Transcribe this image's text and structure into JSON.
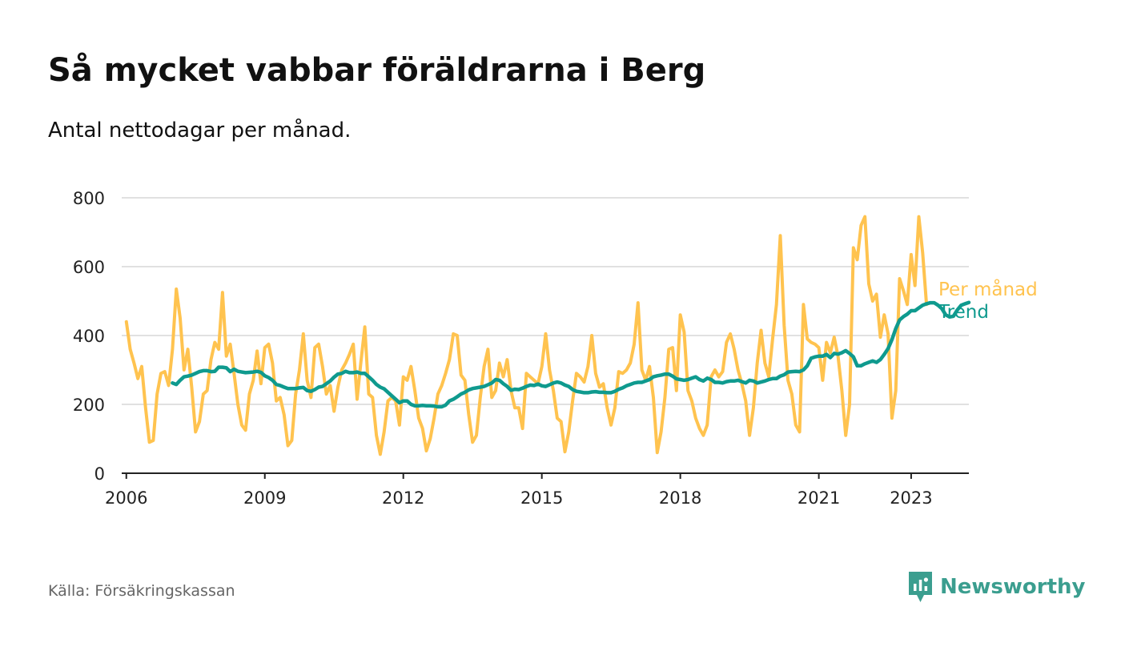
{
  "title": "Så mycket vabbar föräldrarna i Berg",
  "subtitle": "Antal nettodagar per månad.",
  "source": "Källa: Försäkringskassan",
  "brand": {
    "name": "Newsworthy",
    "icon": "newsworthy-logo-icon"
  },
  "colors": {
    "monthly": "#ffc34f",
    "trend": "#0f9a8e",
    "grid": "#d7d7d7",
    "axis": "#222222",
    "brand": "#3b9e8f"
  },
  "chart_data": {
    "type": "line",
    "title": "Så mycket vabbar föräldrarna i Berg",
    "subtitle": "Antal nettodagar per månad.",
    "xlabel": "",
    "ylabel": "",
    "ylim": [
      0,
      800
    ],
    "xlim": [
      2005.9,
      2024.25
    ],
    "yticks": [
      0,
      200,
      400,
      600,
      800
    ],
    "xticks": [
      {
        "value": 2006,
        "label": "2006"
      },
      {
        "value": 2009,
        "label": "2009"
      },
      {
        "value": 2012,
        "label": "2012"
      },
      {
        "value": 2015,
        "label": "2015"
      },
      {
        "value": 2018,
        "label": "2018"
      },
      {
        "value": 2021,
        "label": "2021"
      },
      {
        "value": 2023,
        "label": "2023"
      }
    ],
    "grid": true,
    "legend": "right, inline at line ends",
    "start": 2006.0,
    "step": 0.08333,
    "series": [
      {
        "name": "Per månad",
        "start": 2006.0,
        "values": [
          440,
          360,
          320,
          275,
          310,
          190,
          90,
          95,
          230,
          290,
          295,
          255,
          360,
          535,
          450,
          300,
          360,
          250,
          120,
          150,
          230,
          240,
          330,
          380,
          360,
          525,
          340,
          375,
          290,
          200,
          140,
          125,
          230,
          270,
          355,
          260,
          365,
          375,
          320,
          210,
          220,
          170,
          80,
          95,
          230,
          300,
          405,
          270,
          220,
          365,
          375,
          310,
          230,
          255,
          180,
          250,
          300,
          320,
          345,
          375,
          215,
          325,
          425,
          230,
          220,
          110,
          55,
          120,
          210,
          220,
          210,
          140,
          280,
          270,
          310,
          240,
          160,
          130,
          65,
          100,
          160,
          230,
          255,
          290,
          330,
          405,
          400,
          285,
          270,
          170,
          90,
          110,
          220,
          310,
          360,
          220,
          240,
          320,
          280,
          330,
          240,
          190,
          190,
          130,
          290,
          280,
          270,
          260,
          310,
          405,
          300,
          240,
          160,
          150,
          62,
          120,
          210,
          290,
          280,
          265,
          310,
          400,
          290,
          250,
          260,
          190,
          140,
          190,
          295,
          290,
          300,
          320,
          375,
          495,
          300,
          270,
          310,
          220,
          60,
          120,
          220,
          360,
          365,
          240,
          460,
          410,
          240,
          210,
          160,
          130,
          110,
          140,
          280,
          300,
          280,
          295,
          380,
          405,
          360,
          300,
          260,
          210,
          110,
          190,
          320,
          415,
          320,
          280,
          390,
          490,
          690,
          430,
          270,
          230,
          140,
          120,
          490,
          390,
          380,
          375,
          365,
          270,
          380,
          350,
          395,
          340,
          240,
          110,
          200,
          655,
          620,
          720,
          745,
          550,
          500,
          520,
          395,
          460,
          405,
          160,
          240,
          565,
          530,
          490,
          635,
          545,
          745,
          640,
          490
        ]
      },
      {
        "name": "Trend",
        "start": 2007.0,
        "values": [
          262,
          258,
          270,
          280,
          282,
          285,
          290,
          295,
          298,
          298,
          295,
          296,
          308,
          308,
          306,
          295,
          302,
          296,
          294,
          292,
          293,
          294,
          296,
          293,
          283,
          278,
          270,
          258,
          255,
          250,
          246,
          246,
          246,
          248,
          249,
          240,
          238,
          243,
          250,
          252,
          260,
          268,
          279,
          288,
          290,
          296,
          292,
          292,
          294,
          290,
          290,
          280,
          270,
          258,
          250,
          245,
          235,
          225,
          215,
          205,
          210,
          210,
          200,
          196,
          196,
          197,
          196,
          196,
          195,
          193,
          193,
          198,
          210,
          215,
          222,
          230,
          235,
          242,
          246,
          248,
          250,
          252,
          257,
          262,
          272,
          270,
          260,
          252,
          241,
          244,
          243,
          247,
          252,
          256,
          255,
          259,
          254,
          252,
          257,
          262,
          265,
          262,
          256,
          252,
          243,
          238,
          236,
          234,
          234,
          236,
          237,
          235,
          235,
          234,
          234,
          238,
          244,
          248,
          254,
          258,
          262,
          264,
          264,
          268,
          272,
          280,
          283,
          285,
          288,
          288,
          282,
          274,
          272,
          270,
          272,
          276,
          280,
          272,
          268,
          276,
          272,
          264,
          264,
          262,
          266,
          268,
          268,
          270,
          266,
          262,
          270,
          268,
          262,
          265,
          268,
          272,
          275,
          275,
          282,
          286,
          294,
          295,
          296,
          295,
          300,
          312,
          334,
          338,
          340,
          340,
          345,
          336,
          348,
          346,
          350,
          356,
          348,
          338,
          312,
          312,
          318,
          322,
          326,
          322,
          330,
          345,
          362,
          388,
          420,
          445,
          455,
          462,
          472,
          472,
          480,
          488,
          492,
          495,
          495,
          488,
          478,
          460,
          454,
          456,
          474,
          488,
          492,
          496
        ]
      }
    ]
  }
}
